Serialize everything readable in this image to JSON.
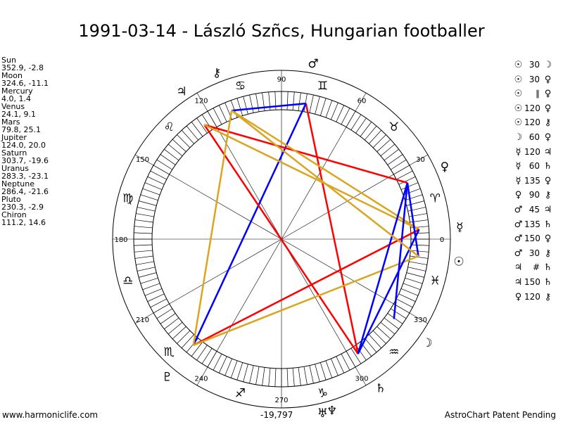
{
  "title": "1991-03-14 - László Szñcs, Hungarian footballer",
  "planets": [
    {
      "name": "Sun",
      "coords": "352.9, -2.8",
      "glyph": "☉",
      "lon": 352.9
    },
    {
      "name": "Moon",
      "coords": "324.6, -11.1",
      "glyph": "☽",
      "lon": 324.6
    },
    {
      "name": "Mercury",
      "coords": "4.0, 1.4",
      "glyph": "☿",
      "lon": 4.0
    },
    {
      "name": "Venus",
      "coords": "24.1, 9.1",
      "glyph": "♀",
      "lon": 24.1
    },
    {
      "name": "Mars",
      "coords": "79.8, 25.1",
      "glyph": "♂",
      "lon": 79.8
    },
    {
      "name": "Jupiter",
      "coords": "124.0, 20.0",
      "glyph": "♃",
      "lon": 124.0
    },
    {
      "name": "Saturn",
      "coords": "303.7, -19.6",
      "glyph": "♄",
      "lon": 303.7
    },
    {
      "name": "Uranus",
      "coords": "283.3, -23.1",
      "glyph": "♅",
      "lon": 283.3
    },
    {
      "name": "Neptune",
      "coords": "286.4, -21.6",
      "glyph": "♆",
      "lon": 286.4
    },
    {
      "name": "Pluto",
      "coords": "230.3, -2.9",
      "glyph": "♇",
      "lon": 230.3
    },
    {
      "name": "Chiron",
      "coords": "111.2, 14.6",
      "glyph": "⚷",
      "lon": 111.2
    }
  ],
  "aspects": [
    {
      "p1": "☉",
      "angle": "30",
      "p2": "☽"
    },
    {
      "p1": "☉",
      "angle": "30",
      "p2": "♀"
    },
    {
      "p1": "☉",
      "angle": "∥",
      "p2": "♀"
    },
    {
      "p1": "☉",
      "angle": "120",
      "p2": "♀"
    },
    {
      "p1": "☉",
      "angle": "120",
      "p2": "⚷"
    },
    {
      "p1": "☽",
      "angle": "60",
      "p2": "♀"
    },
    {
      "p1": "☿",
      "angle": "120",
      "p2": "♃"
    },
    {
      "p1": "☿",
      "angle": "60",
      "p2": "♄"
    },
    {
      "p1": "☿",
      "angle": "135",
      "p2": "♀"
    },
    {
      "p1": "♀",
      "angle": "90",
      "p2": "⚷"
    },
    {
      "p1": "♂",
      "angle": "45",
      "p2": "♃"
    },
    {
      "p1": "♂",
      "angle": "135",
      "p2": "♄"
    },
    {
      "p1": "♂",
      "angle": "150",
      "p2": "♀"
    },
    {
      "p1": "♂",
      "angle": "30",
      "p2": "⚷"
    },
    {
      "p1": "♃",
      "angle": "#",
      "p2": "♄"
    },
    {
      "p1": "♃",
      "angle": "150",
      "p2": "♄"
    },
    {
      "p1": "♀",
      "angle": "120",
      "p2": "⚷"
    }
  ],
  "wheel": {
    "degree_labels": [
      "0",
      "30",
      "60",
      "90",
      "120",
      "150",
      "180",
      "210",
      "240",
      "270",
      "300",
      "330"
    ],
    "sign_glyphs": [
      "♈",
      "♉",
      "♊",
      "♋",
      "♌",
      "♍",
      "♎",
      "♏",
      "♐",
      "♑",
      "♒",
      "♓"
    ],
    "center_value": "-19,797",
    "chart_lines": [
      {
        "from": "Mars",
        "to": "Saturn",
        "color": "#ff0000"
      },
      {
        "from": "Mars",
        "to": "Pluto",
        "color": "#0000ff"
      },
      {
        "from": "Mars",
        "to": "Chiron",
        "color": "#0000ff"
      },
      {
        "from": "Jupiter",
        "to": "Saturn",
        "color": "#ff0000"
      },
      {
        "from": "Jupiter",
        "to": "Venus",
        "color": "#ff0000"
      },
      {
        "from": "Jupiter",
        "to": "Mercury",
        "color": "#daa520"
      },
      {
        "from": "Chiron",
        "to": "Mercury",
        "color": "#daa520"
      },
      {
        "from": "Chiron",
        "to": "Pluto",
        "color": "#daa520"
      },
      {
        "from": "Pluto",
        "to": "Mercury",
        "color": "#ff0000"
      },
      {
        "from": "Pluto",
        "to": "Sun",
        "color": "#daa520"
      },
      {
        "from": "Saturn",
        "to": "Mercury",
        "color": "#0000ff"
      },
      {
        "from": "Saturn",
        "to": "Venus",
        "color": "#0000ff"
      },
      {
        "from": "Moon",
        "to": "Venus",
        "color": "#0000ff"
      },
      {
        "from": "Sun",
        "to": "Venus",
        "color": "#0000ff"
      },
      {
        "from": "Chiron",
        "to": "Sun",
        "color": "#daa520"
      }
    ]
  },
  "footer": {
    "left": "www.harmoniclife.com",
    "right": "AstroChart Patent Pending"
  },
  "colors": {
    "red": "#ff0000",
    "blue": "#0000ff",
    "gold": "#daa520"
  }
}
